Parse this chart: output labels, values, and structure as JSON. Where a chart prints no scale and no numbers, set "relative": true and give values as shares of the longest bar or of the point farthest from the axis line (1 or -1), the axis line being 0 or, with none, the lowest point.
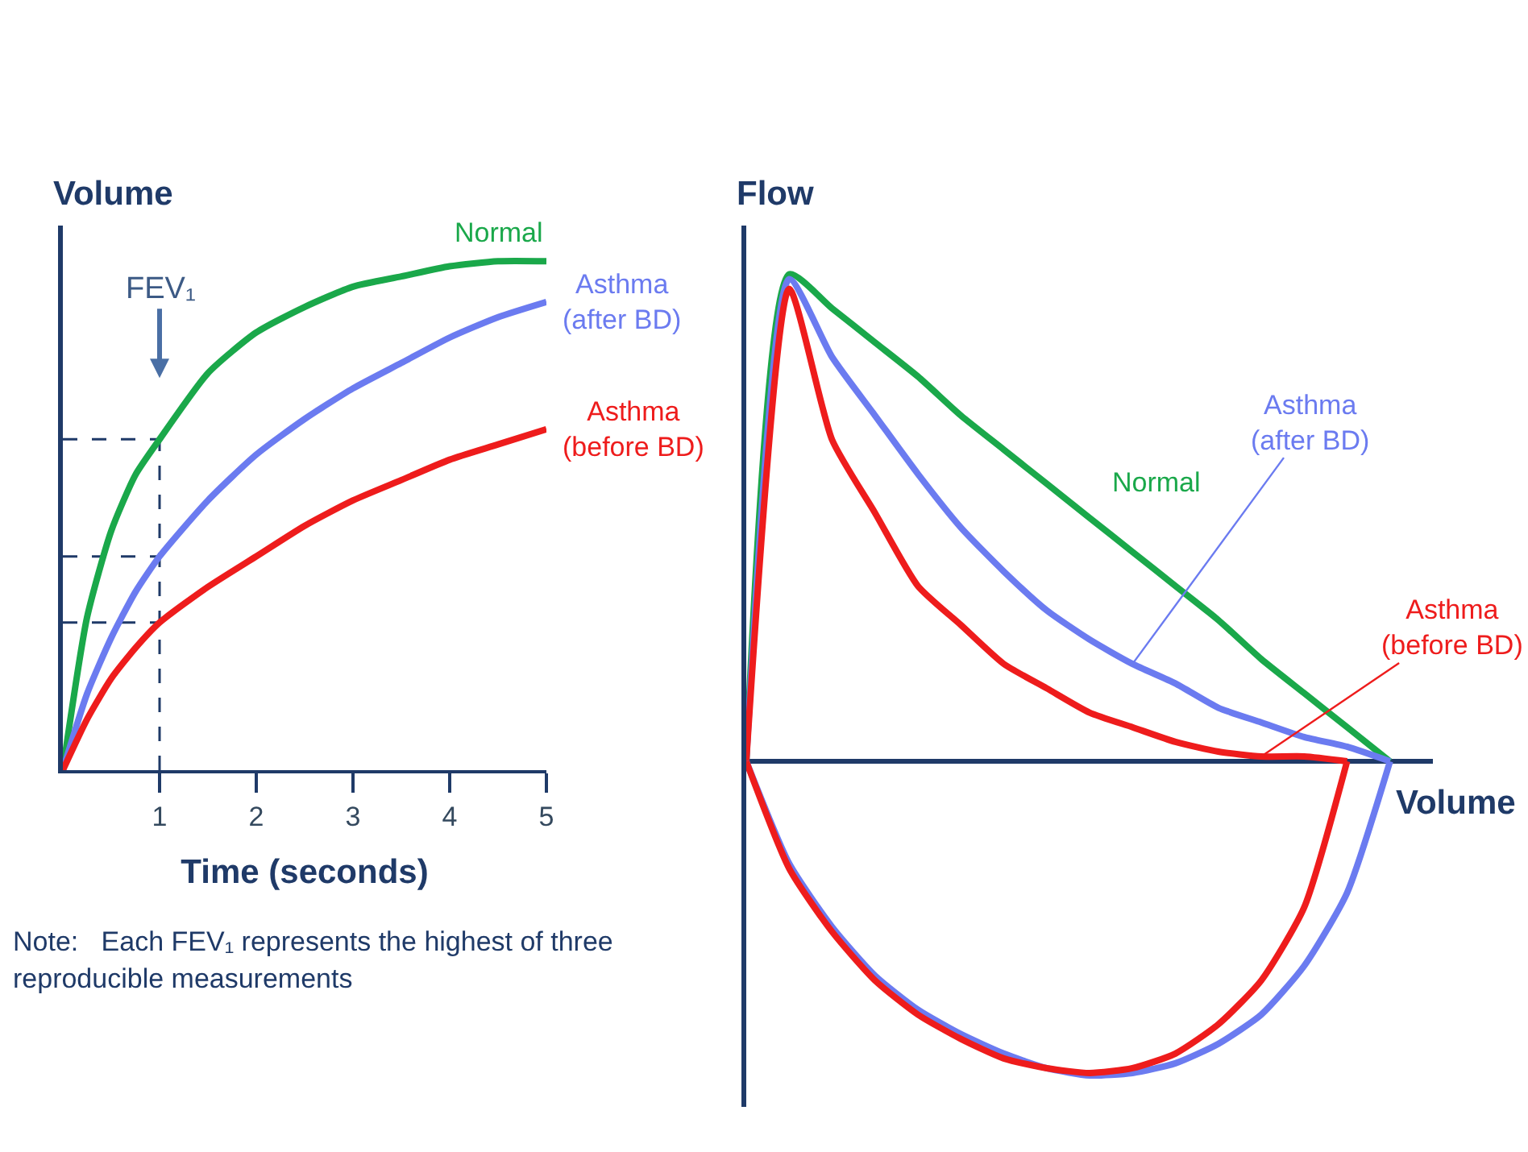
{
  "chart_data": [
    {
      "type": "line",
      "relative": true,
      "ylabel": "Volume",
      "xlabel": "Time (seconds)",
      "x": [
        0,
        0.25,
        0.5,
        0.75,
        1,
        1.5,
        2,
        2.5,
        3,
        3.5,
        4,
        4.5,
        5
      ],
      "xlim": [
        0,
        5
      ],
      "xticks": [
        1,
        2,
        3,
        4,
        5
      ],
      "tick_labels": "x",
      "grid": false,
      "legend": false,
      "line_style": "solid",
      "series": [
        {
          "name": "Normal",
          "color": "#1aa84a",
          "values": [
            0,
            0.3,
            0.47,
            0.58,
            0.65,
            0.78,
            0.86,
            0.91,
            0.95,
            0.97,
            0.99,
            1,
            1
          ]
        },
        {
          "name": "Asthma (after BD)",
          "color": "#6b7bf0",
          "values": [
            0,
            0.15,
            0.26,
            0.35,
            0.42,
            0.53,
            0.62,
            0.69,
            0.75,
            0.8,
            0.85,
            0.89,
            0.92
          ]
        },
        {
          "name": "Asthma (before BD)",
          "color": "#ee1c1c",
          "values": [
            0,
            0.1,
            0.18,
            0.24,
            0.29,
            0.36,
            0.42,
            0.48,
            0.53,
            0.57,
            0.61,
            0.64,
            0.67
          ]
        }
      ],
      "ref_lines": [
        {
          "axis": "x",
          "value": 1,
          "line_style": "dashed",
          "color": "#1f3a68"
        },
        {
          "axis": "y",
          "value": 0.65,
          "line_style": "dashed",
          "color": "#1f3a68"
        },
        {
          "axis": "y",
          "value": 0.42,
          "line_style": "dashed",
          "color": "#1f3a68"
        },
        {
          "axis": "y",
          "value": 0.29,
          "line_style": "dashed",
          "color": "#1f3a68"
        }
      ],
      "annotations": [
        "FEV₁",
        "Note:   Each FEV₁ represents the highest of three reproducible measurements"
      ]
    },
    {
      "type": "line",
      "relative": true,
      "ylabel": "Flow",
      "xlabel": "Volume",
      "categories": [
        null,
        null,
        null,
        null,
        null,
        null,
        null,
        null,
        null,
        null,
        null,
        null,
        null,
        null,
        null,
        null,
        null
      ],
      "tick_labels": false,
      "grid": false,
      "legend": false,
      "line_style": "solid",
      "ref_lines": [
        {
          "axis": "y",
          "value": 0,
          "color": "#1f3a68"
        }
      ],
      "series": [
        {
          "name": "Normal",
          "color": "#1aa84a",
          "values": [
            0,
            1,
            0.93,
            0.86,
            0.79,
            0.71,
            0.64,
            0.57,
            0.5,
            0.43,
            0.36,
            0.29,
            0.21,
            0.14,
            0.07,
            0,
            null
          ]
        },
        {
          "name": "Asthma (after BD)",
          "color": "#6b7bf0",
          "values": [
            0,
            0.99,
            0.83,
            0.71,
            0.59,
            0.48,
            0.39,
            0.31,
            0.25,
            0.2,
            0.16,
            0.11,
            0.08,
            0.05,
            0.03,
            0,
            null
          ]
        },
        {
          "name": "Asthma (before BD)",
          "color": "#ee1c1c",
          "values": [
            0,
            0.97,
            0.66,
            0.51,
            0.36,
            0.28,
            0.2,
            0.15,
            0.1,
            0.07,
            0.04,
            0.02,
            0.01,
            0.01,
            0,
            null,
            null
          ]
        },
        {
          "color": "#6b7bf0",
          "values": [
            0,
            -0.21,
            -0.34,
            -0.44,
            -0.51,
            -0.56,
            -0.6,
            -0.63,
            -0.645,
            -0.64,
            -0.62,
            -0.58,
            -0.52,
            -0.42,
            -0.27,
            0,
            null
          ]
        },
        {
          "color": "#ee1c1c",
          "values": [
            0,
            -0.22,
            -0.35,
            -0.45,
            -0.52,
            -0.57,
            -0.61,
            -0.63,
            -0.64,
            -0.63,
            -0.6,
            -0.54,
            -0.45,
            -0.3,
            0,
            null,
            null
          ]
        }
      ]
    }
  ]
}
